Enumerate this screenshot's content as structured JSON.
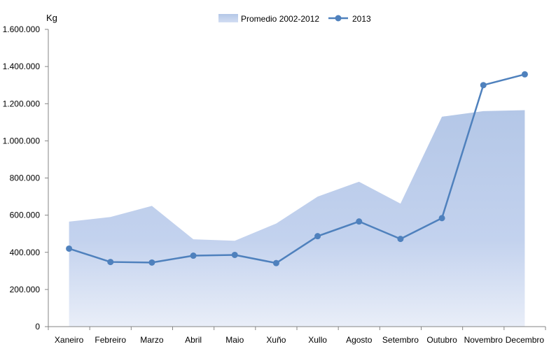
{
  "chart_data": {
    "type": "line",
    "ylabel": "Kg",
    "ylim": [
      0,
      1600000
    ],
    "yticks": [
      "0",
      "200.000",
      "400.000",
      "600.000",
      "800.000",
      "1.000.000",
      "1.200.000",
      "1.400.000",
      "1.600.000"
    ],
    "categories": [
      "Xaneiro",
      "Febreiro",
      "Marzo",
      "Abril",
      "Maio",
      "Xuño",
      "Xullo",
      "Agosto",
      "Setembro",
      "Outubro",
      "Novembro",
      "Decembro"
    ],
    "series": [
      {
        "name": "Promedio 2002-2012",
        "type": "area",
        "color": "#b4c7e7",
        "values": [
          565000,
          590000,
          650000,
          470000,
          462000,
          555000,
          700000,
          780000,
          662000,
          1130000,
          1160000,
          1165000
        ]
      },
      {
        "name": "2013",
        "type": "line",
        "color": "#4f81bd",
        "values": [
          420000,
          348000,
          345000,
          382000,
          386000,
          342000,
          487000,
          566000,
          472000,
          584000,
          1300000,
          1358000
        ]
      }
    ],
    "grid": false,
    "legend": "top-center"
  }
}
